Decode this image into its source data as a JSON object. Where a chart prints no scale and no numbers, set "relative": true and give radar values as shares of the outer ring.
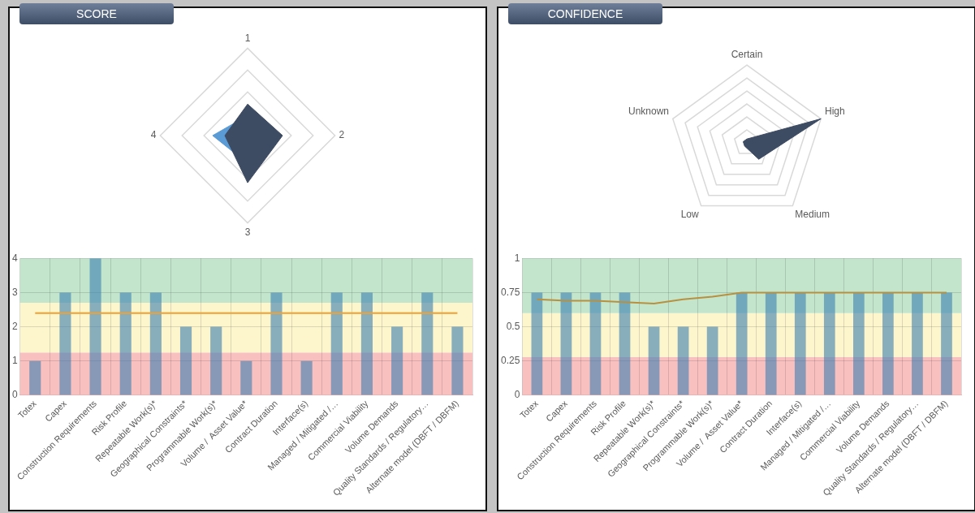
{
  "chart_data": [
    {
      "type": "radar",
      "title": "SCORE",
      "relative": true,
      "categories": [
        "1",
        "2",
        "3",
        "4"
      ],
      "series": [
        {
          "color": "#3d4b63",
          "values": [
            0.36,
            0.4,
            0.54,
            0.26
          ]
        },
        {
          "color": "#5b9bd5",
          "values": [
            0.23,
            0.2,
            0.32,
            0.4
          ]
        }
      ]
    },
    {
      "type": "bar",
      "categories": [
        "Totex",
        "Capex",
        "Construction Requirements",
        "Risk Profile",
        "Repeatable Work(s)*",
        "Geographical Constraints*",
        "Programmable Work(s)*",
        "Volume /  Asset Value*",
        "Contract Duration",
        "Interface(s)",
        "Managed / Mitigated /…",
        "Commercial Viability",
        "Volume Demands",
        "Quality Standards / Regulatory…",
        "Alternate model (DBFT / DBFM)"
      ],
      "ylim": [
        0,
        4
      ],
      "yticks": [
        0,
        1,
        2,
        3,
        4
      ],
      "grid": true,
      "bands": [
        {
          "axis": "y",
          "from": 0,
          "to": 1.25,
          "color": "#f9c0c0"
        },
        {
          "axis": "y",
          "from": 1.25,
          "to": 2.7,
          "color": "#fdf5cc"
        },
        {
          "axis": "y",
          "from": 2.7,
          "to": 4,
          "color": "#c2e5cc"
        }
      ],
      "series": [
        {
          "type": "bar",
          "color": "#3a7fb0",
          "values": [
            1,
            3,
            4,
            3,
            3,
            2,
            2,
            1,
            3,
            1,
            3,
            3,
            2,
            3,
            2
          ]
        },
        {
          "type": "line",
          "color": "#f0a030",
          "values": [
            2.4,
            2.4,
            2.4,
            2.4,
            2.4,
            2.4,
            2.4,
            2.4,
            2.4,
            2.4,
            2.4,
            2.4,
            2.4,
            2.4,
            2.4
          ]
        }
      ]
    },
    {
      "type": "radar",
      "title": "CONFIDENCE",
      "relative": true,
      "categories": [
        "Certain",
        "High",
        "Medium",
        "Low",
        "Unknown"
      ],
      "series": [
        {
          "color": "#3d4b63",
          "values": [
            0.05,
            1,
            0.26,
            0.05,
            0.05
          ]
        }
      ]
    },
    {
      "type": "bar",
      "categories": [
        "Totex",
        "Capex",
        "Construction Requirements",
        "Risk Profile",
        "Repeatable Work(s)*",
        "Geographical Constraints*",
        "Programmable Work(s)*",
        "Volume /  Asset Value*",
        "Contract Duration",
        "Interface(s)",
        "Managed / Mitigated /…",
        "Commercial Viability",
        "Volume Demands",
        "Quality Standards / Regulatory…",
        "Alternate model (DBFT / DBFM)"
      ],
      "ylim": [
        0,
        1
      ],
      "yticks": [
        0,
        0.25,
        0.5,
        0.75,
        1
      ],
      "grid": true,
      "bands": [
        {
          "axis": "y",
          "from": 0,
          "to": 0.28,
          "color": "#f9c0c0"
        },
        {
          "axis": "y",
          "from": 0.28,
          "to": 0.6,
          "color": "#fdf5cc"
        },
        {
          "axis": "y",
          "from": 0.6,
          "to": 1,
          "color": "#c2e5cc"
        }
      ],
      "series": [
        {
          "type": "bar",
          "color": "#3a7fb0",
          "values": [
            0.75,
            0.75,
            0.75,
            0.75,
            0.5,
            0.5,
            0.5,
            0.75,
            0.75,
            0.75,
            0.75,
            0.75,
            0.75,
            0.75,
            0.75
          ]
        },
        {
          "type": "line",
          "color": "#b89040",
          "values": [
            0.7,
            0.69,
            0.69,
            0.68,
            0.67,
            0.7,
            0.72,
            0.75,
            0.75,
            0.75,
            0.75,
            0.75,
            0.75,
            0.75,
            0.75
          ]
        }
      ]
    }
  ]
}
